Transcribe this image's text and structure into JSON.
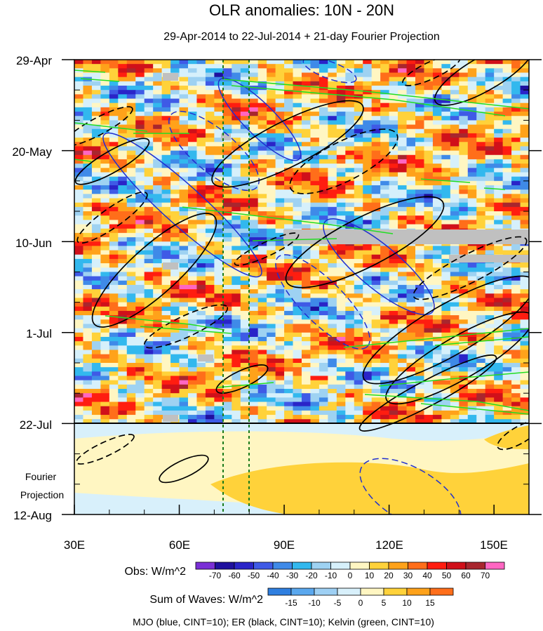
{
  "chart_data": {
    "type": "heatmap",
    "title": "OLR anomalies: 10N - 20N",
    "subtitle": "29-Apr-2014 to 22-Jul-2014 + 21-day Fourier Projection",
    "x_axis": {
      "range": [
        30,
        160
      ],
      "ticks": [
        30,
        60,
        90,
        120,
        150
      ],
      "tick_labels": [
        "30E",
        "60E",
        "90E",
        "120E",
        "150E"
      ]
    },
    "y_axis": {
      "range_days": [
        0,
        105
      ],
      "ticks": [
        0,
        21,
        42,
        63,
        84,
        105
      ],
      "tick_labels": [
        "29-Apr",
        "20-May",
        "10-Jun",
        "1-Jul",
        "22-Jul",
        "12-Aug"
      ],
      "direction": "time increases downward"
    },
    "projection_label": "Fourier Projection",
    "projection_start_day": 84,
    "reference_lines_lon": [
      72.5,
      80
    ],
    "obs_colorbar": {
      "label": "Obs: W/m^2",
      "levels": [
        -70,
        -60,
        -50,
        -40,
        -30,
        -20,
        -10,
        0,
        10,
        20,
        30,
        40,
        50,
        60,
        70
      ],
      "colors": [
        "#7a2fd6",
        "#1f109e",
        "#2a24c8",
        "#3f5ae6",
        "#3f8ae8",
        "#32b8ee",
        "#9ed2f2",
        "#d6f0fb",
        "#fff6c2",
        "#ffd23a",
        "#ffa21a",
        "#ff6e1a",
        "#ff1d10",
        "#d0101a",
        "#a8262e",
        "#ff66c2"
      ]
    },
    "waves_colorbar": {
      "label": "Sum of Waves: W/m^2",
      "levels": [
        -15,
        -10,
        -5,
        0,
        5,
        10,
        15
      ],
      "colors": [
        "#2f7fe0",
        "#5aa8ee",
        "#9ed0f4",
        "#d8f0fb",
        "#fff6c2",
        "#ffd23a",
        "#ffa21a",
        "#ff6e1a"
      ]
    },
    "contour_legend": "MJO (blue, CINT=10); ER (black, CINT=10); Kelvin (green, CINT=10)",
    "series": [
      {
        "name": "MJO",
        "color": "#1f2fd0",
        "cint": 10
      },
      {
        "name": "ER",
        "color": "#000000",
        "cint": 10
      },
      {
        "name": "Kelvin",
        "color": "#22dd22",
        "cint": 10
      }
    ]
  }
}
